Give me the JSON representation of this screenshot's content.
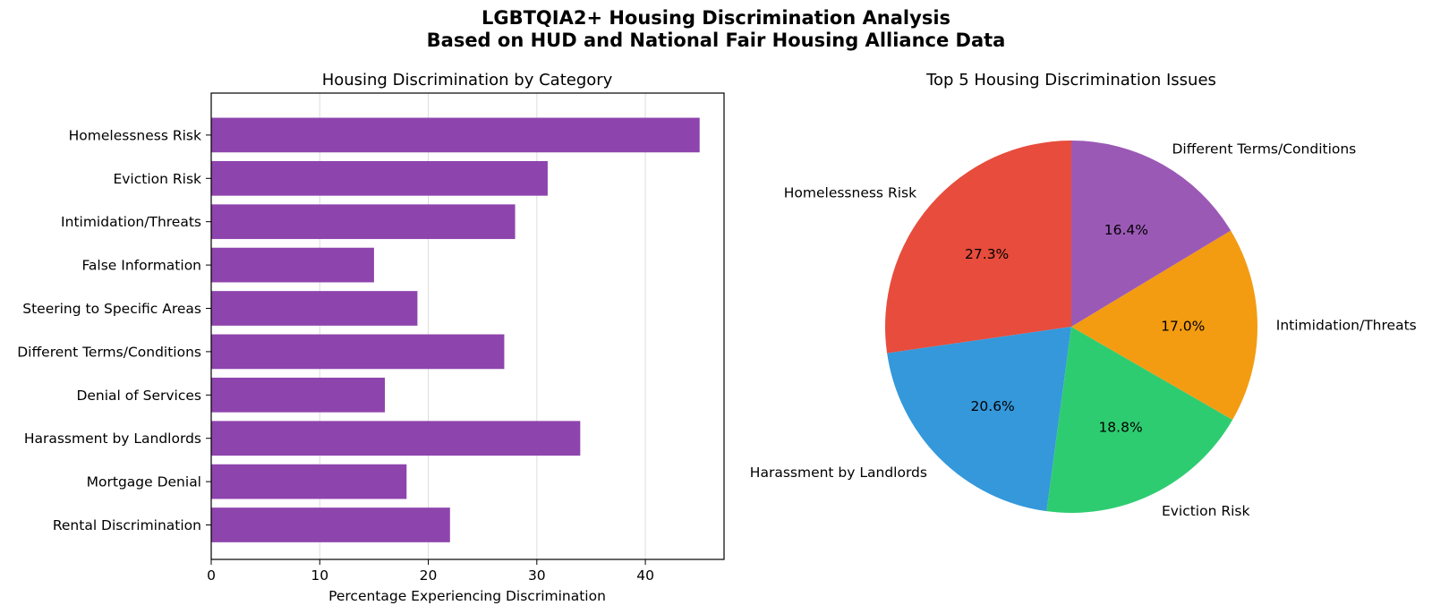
{
  "figure": {
    "title_line1": "LGBTQIA2+ Housing Discrimination Analysis",
    "title_line2": "Based on HUD and National Fair Housing Alliance Data"
  },
  "colors": {
    "bar": "#8e44ad",
    "grid": "#dddddd",
    "pie": [
      "#e74c3c",
      "#3498db",
      "#2ecc71",
      "#f39c12",
      "#9b59b6"
    ]
  },
  "chart_data": [
    {
      "type": "bar",
      "orientation": "horizontal",
      "title": "Housing Discrimination by Category",
      "xlabel": "Percentage Experiencing Discrimination",
      "ylabel": "",
      "categories": [
        "Rental Discrimination",
        "Mortgage Denial",
        "Harassment by Landlords",
        "Denial of Services",
        "Different Terms/Conditions",
        "Steering to Specific Areas",
        "False Information",
        "Intimidation/Threats",
        "Eviction Risk",
        "Homelessness Risk"
      ],
      "values": [
        22,
        18,
        34,
        16,
        27,
        19,
        15,
        28,
        31,
        45
      ],
      "xlim": [
        0,
        47.25
      ],
      "xticks": [
        "0",
        "10",
        "20",
        "30",
        "40"
      ],
      "grid": "x-axis vertical lines"
    },
    {
      "type": "pie",
      "title": "Top 5 Housing Discrimination Issues",
      "labels": [
        "Homelessness Risk",
        "Harassment by Landlords",
        "Eviction Risk",
        "Intimidation/Threats",
        "Different Terms/Conditions"
      ],
      "values": [
        45,
        34,
        31,
        28,
        27
      ],
      "percent_labels": [
        "27.3%",
        "20.6%",
        "18.8%",
        "17.0%",
        "16.4%"
      ],
      "start_angle_deg": 90,
      "direction": "counterclockwise"
    }
  ]
}
